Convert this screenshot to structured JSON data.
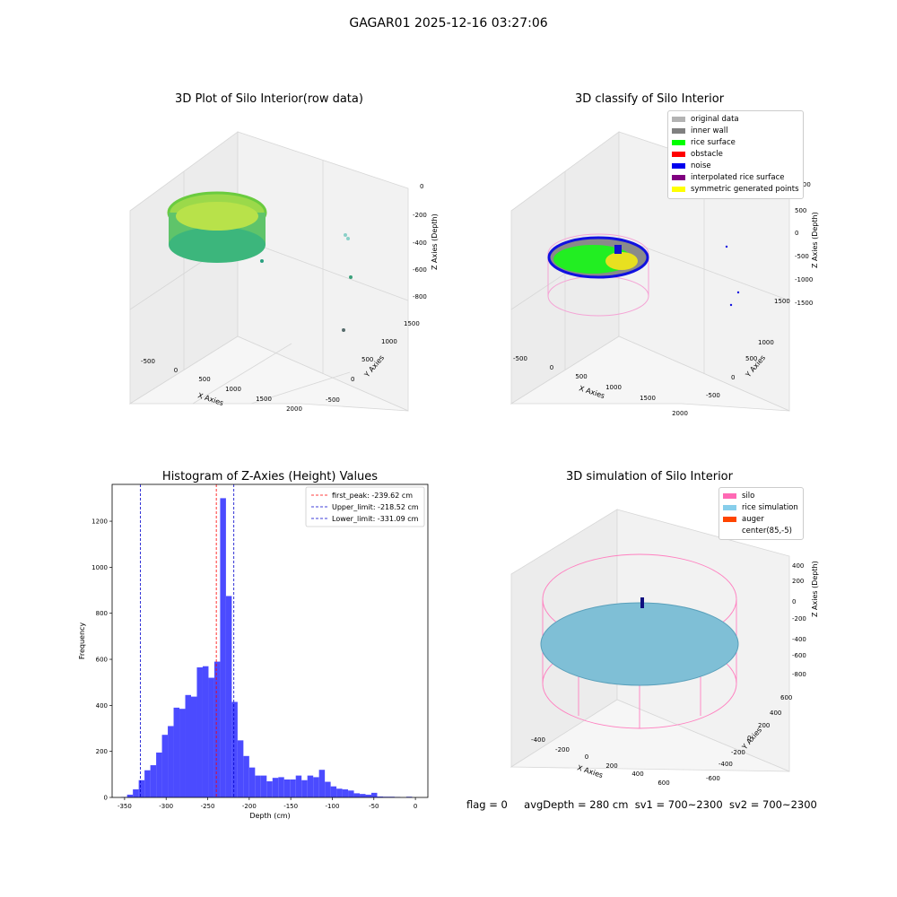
{
  "suptitle": "GAGAR01 2025-12-16 03:27:06",
  "panels": {
    "raw": {
      "title": "3D Plot of Silo Interior(row data)",
      "xlabel": "X Axies",
      "ylabel": "Y Axies",
      "zlabel": "Z Axies (Depth)",
      "xticks": [
        "-500",
        "0",
        "500",
        "1000",
        "1500",
        "2000"
      ],
      "yticks": [
        "1500",
        "1000",
        "500",
        "0",
        "-500"
      ],
      "zticks": [
        "0",
        "-200",
        "-400",
        "-600",
        "-800"
      ]
    },
    "classify": {
      "title": "3D classify of Silo Interior",
      "xlabel": "X Axies",
      "ylabel": "Y Axies",
      "zlabel": "Z Axies (Depth)",
      "xticks": [
        "-500",
        "0",
        "500",
        "1000",
        "1500",
        "2000"
      ],
      "yticks": [
        "1500",
        "1000",
        "500",
        "0",
        "-500"
      ],
      "zticks": [
        "1000",
        "500",
        "0",
        "-500",
        "-1000",
        "-1500"
      ],
      "legend": [
        {
          "label": "original data",
          "color": "#b3b3b3"
        },
        {
          "label": "inner wall",
          "color": "#808080"
        },
        {
          "label": "rice surface",
          "color": "#00ff00"
        },
        {
          "label": "obstacle",
          "color": "#ff0000"
        },
        {
          "label": "noise",
          "color": "#0000ee"
        },
        {
          "label": "interpolated rice surface",
          "color": "#800080"
        },
        {
          "label": "symmetric generated points",
          "color": "#ffff00"
        }
      ]
    },
    "simulation": {
      "title": "3D simulation of Silo Interior",
      "xlabel": "X Axies",
      "ylabel": "Y Axies",
      "zlabel": "Z Axies (Depth)",
      "xticks": [
        "-400",
        "-200",
        "0",
        "200",
        "400",
        "600"
      ],
      "yticks": [
        "600",
        "400",
        "200",
        "0",
        "-200",
        "-400",
        "-600"
      ],
      "zticks": [
        "400",
        "200",
        "0",
        "-200",
        "-400",
        "-600",
        "-800"
      ],
      "legend": [
        {
          "label": "silo",
          "color": "#ff69b4"
        },
        {
          "label": "rice simulation",
          "color": "#87ceeb"
        },
        {
          "label": "auger",
          "color": "#ff4500"
        },
        {
          "label": "center(85,-5)",
          "color": "#ffffff"
        }
      ]
    }
  },
  "chart_data": {
    "type": "bar",
    "title": "Histogram of Z-Axies (Height) Values",
    "xlabel": "Depth (cm)",
    "ylabel": "Frequency",
    "xlim": [
      -365,
      15
    ],
    "ylim": [
      0,
      1360
    ],
    "bar_color": "#4b4bff",
    "bin_width": 7,
    "xticks": [
      -350,
      -300,
      -250,
      -200,
      -150,
      -100,
      -50,
      0
    ],
    "yticks": [
      0,
      200,
      400,
      600,
      800,
      1000,
      1200
    ],
    "bins": [
      {
        "x0": -354,
        "count": 2
      },
      {
        "x0": -347,
        "count": 12
      },
      {
        "x0": -340,
        "count": 35
      },
      {
        "x0": -333,
        "count": 75
      },
      {
        "x0": -326,
        "count": 118
      },
      {
        "x0": -319,
        "count": 140
      },
      {
        "x0": -312,
        "count": 195
      },
      {
        "x0": -305,
        "count": 272
      },
      {
        "x0": -298,
        "count": 310
      },
      {
        "x0": -291,
        "count": 390
      },
      {
        "x0": -284,
        "count": 385
      },
      {
        "x0": -277,
        "count": 445
      },
      {
        "x0": -270,
        "count": 438
      },
      {
        "x0": -263,
        "count": 565
      },
      {
        "x0": -256,
        "count": 570
      },
      {
        "x0": -249,
        "count": 520
      },
      {
        "x0": -242,
        "count": 590
      },
      {
        "x0": -235,
        "count": 1300
      },
      {
        "x0": -228,
        "count": 875
      },
      {
        "x0": -221,
        "count": 415
      },
      {
        "x0": -214,
        "count": 248
      },
      {
        "x0": -207,
        "count": 180
      },
      {
        "x0": -200,
        "count": 130
      },
      {
        "x0": -193,
        "count": 95
      },
      {
        "x0": -186,
        "count": 95
      },
      {
        "x0": -179,
        "count": 70
      },
      {
        "x0": -172,
        "count": 85
      },
      {
        "x0": -165,
        "count": 88
      },
      {
        "x0": -158,
        "count": 78
      },
      {
        "x0": -151,
        "count": 78
      },
      {
        "x0": -144,
        "count": 95
      },
      {
        "x0": -137,
        "count": 75
      },
      {
        "x0": -130,
        "count": 95
      },
      {
        "x0": -123,
        "count": 88
      },
      {
        "x0": -116,
        "count": 120
      },
      {
        "x0": -109,
        "count": 68
      },
      {
        "x0": -102,
        "count": 48
      },
      {
        "x0": -95,
        "count": 38
      },
      {
        "x0": -88,
        "count": 35
      },
      {
        "x0": -81,
        "count": 30
      },
      {
        "x0": -74,
        "count": 18
      },
      {
        "x0": -67,
        "count": 15
      },
      {
        "x0": -60,
        "count": 12
      },
      {
        "x0": -53,
        "count": 20
      },
      {
        "x0": -46,
        "count": 4
      },
      {
        "x0": -39,
        "count": 3
      },
      {
        "x0": -32,
        "count": 3
      },
      {
        "x0": -25,
        "count": 2
      },
      {
        "x0": -11,
        "count": 3
      }
    ],
    "vlines": [
      {
        "label": "first_peak: -239.62 cm",
        "x": -239.62,
        "color": "#ff0000"
      },
      {
        "label": "Upper_limit: -218.52 cm",
        "x": -218.52,
        "color": "#0000cc"
      },
      {
        "label": "Lower_limit: -331.09 cm",
        "x": -331.09,
        "color": "#0000cc"
      }
    ],
    "legend_position": "top-right"
  },
  "footer": {
    "flag": "flag = 0",
    "avg": "avgDepth = 280 cm",
    "sv1": "sv1 = 700~2300",
    "sv2": "sv2 = 700~2300"
  }
}
